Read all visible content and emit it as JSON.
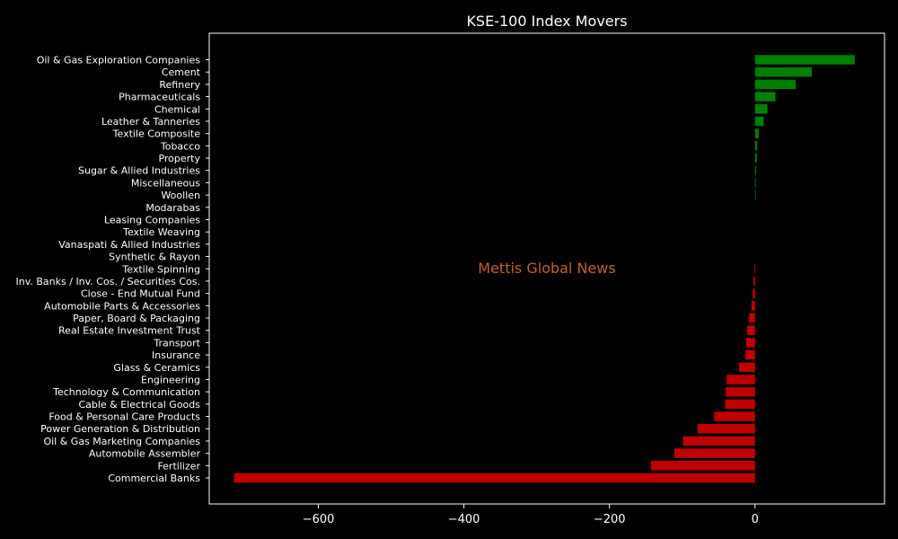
{
  "chart_data": {
    "type": "bar",
    "orientation": "horizontal",
    "title": "KSE-100 Index Movers",
    "watermark": "Mettis Global News",
    "xlabel": "",
    "ylabel": "",
    "xlim": [
      -750,
      178
    ],
    "xticks": [
      -600,
      -400,
      -200,
      0
    ],
    "xtick_labels": [
      "−600",
      "−400",
      "−200",
      "0"
    ],
    "grid": false,
    "colors": {
      "positive": "#008000",
      "negative": "#c00000",
      "background": "#000000",
      "foreground": "#ffffff",
      "watermark": "#c0632a"
    },
    "categories": [
      "Oil & Gas Exploration Companies",
      "Cement",
      "Refinery",
      "Pharmaceuticals",
      "Chemical",
      "Leather & Tanneries",
      "Textile Composite",
      "Tobacco",
      "Property",
      "Sugar & Allied Industries",
      "Miscellaneous",
      "Woollen",
      "Modarabas",
      "Leasing Companies",
      "Textile Weaving",
      "Vanaspati & Allied Industries",
      "Synthetic & Rayon",
      "Textile Spinning",
      "Inv. Banks / Inv. Cos. / Securities Cos.",
      "Close - End Mutual Fund",
      "Automobile Parts & Accessories",
      "Paper, Board & Packaging",
      "Real Estate Investment Trust",
      "Transport",
      "Insurance",
      "Glass & Ceramics",
      "Engineering",
      "Technology & Communication",
      "Cable & Electrical Goods",
      "Food & Personal Care Products",
      "Power Generation & Distribution",
      "Oil & Gas Marketing Companies",
      "Automobile Assembler",
      "Fertilizer",
      "Commercial Banks"
    ],
    "values": [
      137,
      78,
      56,
      28,
      17,
      12,
      5,
      3,
      2.5,
      1.5,
      1,
      0.5,
      0,
      0,
      0,
      0,
      0,
      -1,
      -2,
      -3,
      -5,
      -8,
      -11,
      -12,
      -13,
      -22,
      -39,
      -40,
      -41,
      -56,
      -79,
      -99,
      -111,
      -143,
      -716
    ]
  }
}
